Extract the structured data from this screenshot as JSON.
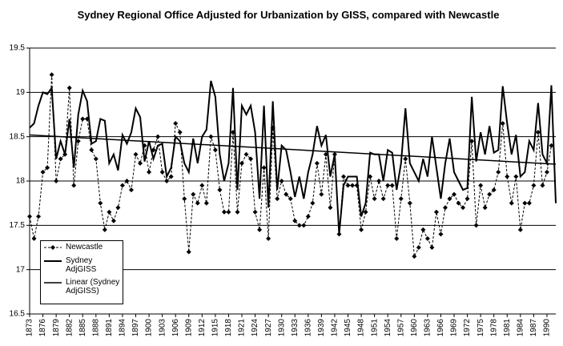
{
  "chart_data": {
    "type": "line",
    "title": "Sydney Regional Office Adjusted for Urbanization by GISS,   compared with Newcastle",
    "x": [
      1873,
      1874,
      1875,
      1876,
      1877,
      1878,
      1879,
      1880,
      1881,
      1882,
      1883,
      1884,
      1885,
      1886,
      1887,
      1888,
      1889,
      1890,
      1891,
      1892,
      1893,
      1894,
      1895,
      1896,
      1897,
      1898,
      1899,
      1900,
      1901,
      1902,
      1903,
      1904,
      1905,
      1906,
      1907,
      1908,
      1909,
      1910,
      1911,
      1912,
      1913,
      1914,
      1915,
      1916,
      1917,
      1918,
      1919,
      1920,
      1921,
      1922,
      1923,
      1924,
      1925,
      1926,
      1927,
      1928,
      1929,
      1930,
      1931,
      1932,
      1933,
      1934,
      1935,
      1936,
      1937,
      1938,
      1939,
      1940,
      1941,
      1942,
      1943,
      1944,
      1945,
      1946,
      1947,
      1948,
      1949,
      1950,
      1951,
      1952,
      1953,
      1954,
      1955,
      1956,
      1957,
      1958,
      1959,
      1960,
      1961,
      1962,
      1963,
      1964,
      1965,
      1966,
      1967,
      1968,
      1969,
      1970,
      1971,
      1972,
      1973,
      1974,
      1975,
      1976,
      1977,
      1978,
      1979,
      1980,
      1981,
      1982,
      1983,
      1984,
      1985,
      1986,
      1987,
      1988,
      1989,
      1990,
      1991,
      1992
    ],
    "series": [
      {
        "name": "Newcastle",
        "color": "#000000",
        "dashed": true,
        "marker": "diamond",
        "values": [
          17.6,
          17.35,
          17.6,
          18.1,
          18.15,
          19.2,
          18.0,
          18.25,
          18.3,
          19.05,
          17.95,
          18.45,
          18.7,
          18.7,
          18.35,
          18.25,
          17.75,
          17.45,
          17.65,
          17.55,
          17.7,
          17.95,
          18.0,
          17.9,
          18.3,
          18.2,
          18.4,
          18.1,
          18.35,
          18.5,
          18.1,
          18.0,
          18.05,
          18.65,
          18.55,
          17.8,
          17.2,
          17.85,
          17.75,
          17.95,
          17.75,
          18.5,
          18.35,
          17.9,
          17.65,
          17.65,
          18.55,
          17.65,
          18.2,
          18.3,
          18.25,
          17.65,
          17.45,
          18.15,
          17.35,
          18.6,
          17.8,
          18.0,
          17.85,
          17.8,
          17.55,
          17.5,
          17.5,
          17.6,
          17.75,
          18.2,
          17.85,
          18.3,
          17.7,
          18.3,
          17.4,
          18.05,
          17.95,
          17.95,
          17.95,
          17.45,
          17.65,
          18.05,
          17.8,
          18.0,
          17.8,
          17.95,
          17.95,
          17.35,
          17.8,
          18.25,
          17.75,
          17.15,
          17.25,
          17.45,
          17.35,
          17.25,
          17.65,
          17.4,
          17.7,
          17.8,
          17.85,
          17.75,
          17.7,
          17.8,
          18.45,
          17.5,
          17.95,
          17.7,
          17.85,
          17.9,
          18.1,
          18.65,
          18.05,
          17.75,
          18.05,
          17.45,
          17.75,
          17.75,
          17.95,
          18.55,
          17.95,
          18.1,
          18.4,
          null
        ]
      },
      {
        "name": "Sydney AdjGISS",
        "color": "#000000",
        "width": 2,
        "values": [
          18.6,
          18.65,
          18.85,
          19.0,
          18.98,
          19.05,
          18.25,
          18.45,
          18.3,
          18.7,
          18.15,
          18.75,
          19.02,
          18.9,
          18.42,
          18.45,
          18.7,
          18.68,
          18.2,
          18.3,
          18.12,
          18.52,
          18.42,
          18.55,
          18.82,
          18.72,
          18.22,
          18.45,
          18.25,
          18.4,
          18.42,
          18.05,
          18.15,
          18.5,
          18.45,
          18.2,
          18.1,
          18.48,
          18.2,
          18.5,
          18.58,
          19.13,
          18.95,
          18.3,
          18.0,
          18.2,
          19.05,
          17.9,
          18.85,
          18.75,
          18.85,
          18.55,
          17.8,
          18.85,
          17.7,
          18.9,
          17.9,
          18.4,
          18.35,
          18.1,
          17.82,
          18.05,
          17.8,
          18.1,
          18.3,
          18.62,
          18.4,
          18.52,
          18.05,
          18.3,
          17.4,
          17.95,
          18.05,
          18.05,
          18.05,
          17.6,
          17.75,
          18.32,
          18.3,
          18.3,
          18.0,
          18.35,
          18.32,
          17.9,
          18.2,
          18.82,
          18.2,
          18.1,
          18.0,
          18.25,
          18.05,
          18.5,
          18.15,
          17.8,
          18.2,
          18.48,
          18.1,
          18.0,
          17.9,
          17.92,
          18.95,
          18.22,
          18.55,
          18.3,
          18.62,
          18.32,
          18.35,
          19.07,
          18.65,
          18.3,
          18.52,
          18.05,
          18.1,
          18.45,
          18.35,
          18.88,
          18.3,
          18.2,
          19.08,
          17.75
        ]
      },
      {
        "name": "Linear (Sydney AdjGISS)",
        "color": "#000000",
        "width": 1.5,
        "x": [
          1873,
          1992
        ],
        "values": [
          18.52,
          18.19
        ]
      }
    ],
    "xlim": [
      1873,
      1992
    ],
    "xticks": [
      1873,
      1876,
      1879,
      1882,
      1885,
      1888,
      1891,
      1894,
      1897,
      1900,
      1903,
      1906,
      1909,
      1912,
      1915,
      1918,
      1921,
      1924,
      1927,
      1930,
      1933,
      1936,
      1939,
      1942,
      1945,
      1948,
      1951,
      1954,
      1957,
      1960,
      1963,
      1966,
      1969,
      1972,
      1975,
      1978,
      1981,
      1984,
      1987,
      1990
    ],
    "ylim": [
      16.5,
      19.5
    ],
    "yticks": [
      16.5,
      17,
      17.5,
      18,
      18.5,
      19,
      19.5
    ],
    "grid": true,
    "legend": "lower left"
  }
}
